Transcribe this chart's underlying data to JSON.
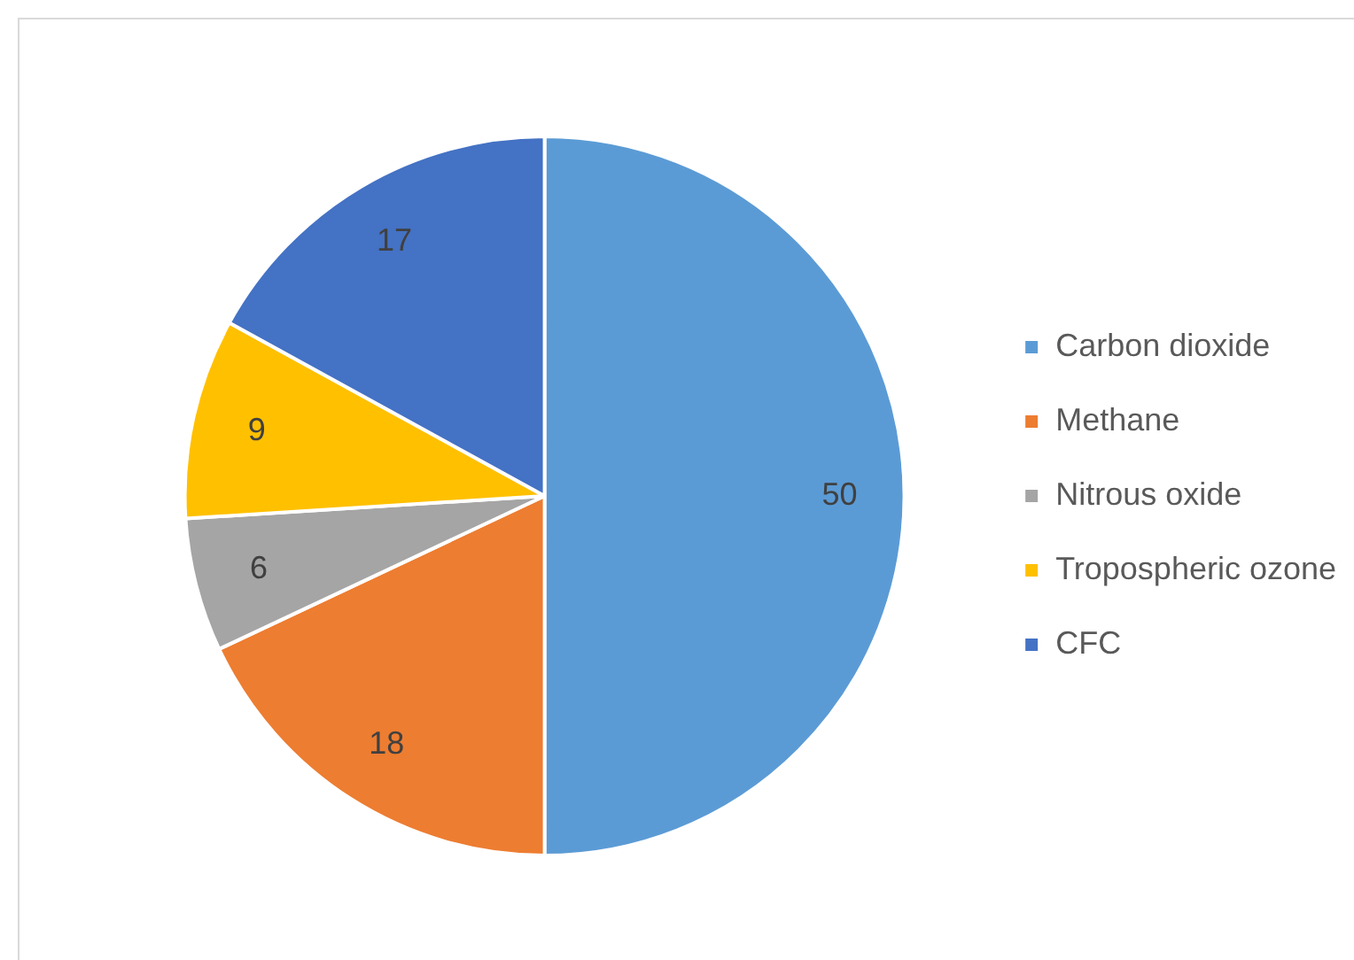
{
  "chart_data": {
    "type": "pie",
    "categories": [
      "Carbon dioxide",
      "Methane",
      "Nitrous oxide",
      "Tropospheric ozone",
      "CFC"
    ],
    "values": [
      50,
      18,
      6,
      9,
      17
    ],
    "colors": [
      "#5b9bd5",
      "#ed7d31",
      "#a5a5a5",
      "#ffc000",
      "#4472c4"
    ],
    "data_labels": true,
    "legend": "right"
  }
}
